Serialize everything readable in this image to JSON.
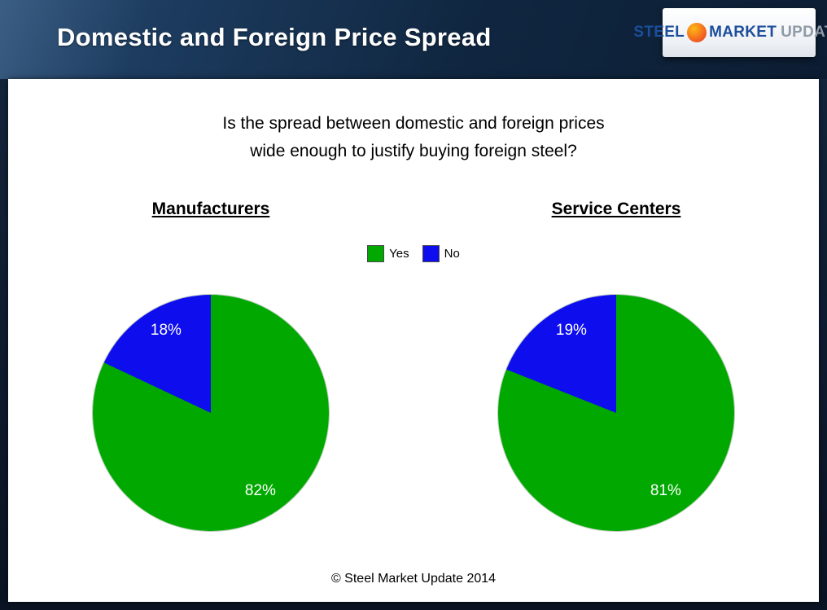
{
  "header": {
    "title": "Domestic and Foreign Price Spread",
    "logo": {
      "steel": "STEEL",
      "market": "MARKET",
      "update": "UPDATE"
    }
  },
  "question": {
    "line1": "Is the spread between domestic and foreign prices",
    "line2": "wide enough to justify buying foreign steel?"
  },
  "legend": {
    "yes": "Yes",
    "no": "No"
  },
  "colors": {
    "yes": "#00a800",
    "no": "#0d0dee"
  },
  "footer": "© Steel Market Update 2014",
  "chart_data": [
    {
      "type": "pie",
      "title": "Manufacturers",
      "labels": [
        "Yes",
        "No"
      ],
      "values": [
        82,
        18
      ],
      "value_labels": [
        "82%",
        "18%"
      ],
      "colors": [
        "#00a800",
        "#0d0dee"
      ],
      "start_angle_deg": 0,
      "direction": "clockwise",
      "legend_position": "top-center"
    },
    {
      "type": "pie",
      "title": "Service Centers",
      "labels": [
        "Yes",
        "No"
      ],
      "values": [
        81,
        19
      ],
      "value_labels": [
        "81%",
        "19%"
      ],
      "colors": [
        "#00a800",
        "#0d0dee"
      ],
      "start_angle_deg": 0,
      "direction": "clockwise",
      "legend_position": "top-center"
    }
  ]
}
